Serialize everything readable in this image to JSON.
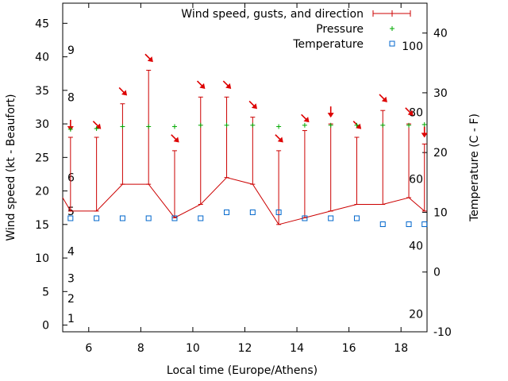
{
  "chart_data": {
    "type": "line",
    "title": "",
    "xlabel": "Local time (Europe/Athens)",
    "ylabel": "Wind speed (kt - Beaufort)",
    "y2label": "Temperature (C - F)",
    "xlim": [
      5,
      19
    ],
    "ylim": [
      -1,
      48
    ],
    "y2lim": [
      -10,
      45
    ],
    "x_ticks": [
      6,
      8,
      10,
      12,
      14,
      16,
      18
    ],
    "y_ticks": [
      0,
      5,
      10,
      15,
      20,
      25,
      30,
      35,
      40,
      45
    ],
    "y2_ticks": [
      -10,
      0,
      10,
      20,
      30,
      40
    ],
    "beaufort_labels": [
      {
        "label": "1",
        "kt": 1
      },
      {
        "label": "2",
        "kt": 4
      },
      {
        "label": "3",
        "kt": 7
      },
      {
        "label": "4",
        "kt": 11
      },
      {
        "label": "5",
        "kt": 17
      },
      {
        "label": "6",
        "kt": 22
      },
      {
        "label": "8",
        "kt": 34
      },
      {
        "label": "9",
        "kt": 41
      }
    ],
    "fahrenheit_labels": [
      {
        "label": "20",
        "y2": -7
      },
      {
        "label": "40",
        "y2": 4.4
      },
      {
        "label": "60",
        "y2": 15.6
      },
      {
        "label": "80",
        "y2": 26.7
      },
      {
        "label": "100",
        "y2": 37.8
      }
    ],
    "legend": [
      {
        "label": "Wind speed, gusts, and direction",
        "color": "#cc0000",
        "marker": "errorbar"
      },
      {
        "label": "Pressure",
        "color": "#00aa00",
        "marker": "plus"
      },
      {
        "label": "Temperature",
        "color": "#0066cc",
        "marker": "square"
      }
    ],
    "legend_position": "top-right",
    "series": [
      {
        "name": "Wind speed",
        "color": "#cc0000",
        "x": [
          5.3,
          6.3,
          7.3,
          8.3,
          9.3,
          10.3,
          11.3,
          12.3,
          13.3,
          14.3,
          15.3,
          16.3,
          17.3,
          18.3,
          18.9
        ],
        "values": [
          17,
          17,
          21,
          21,
          16,
          18,
          22,
          21,
          15,
          16,
          17,
          18,
          18,
          19,
          17
        ],
        "gusts": [
          28,
          28,
          33,
          38,
          26,
          34,
          34,
          31,
          26,
          29,
          30,
          28,
          32,
          30,
          27
        ],
        "direction_deg": [
          0,
          315,
          315,
          315,
          315,
          315,
          315,
          315,
          315,
          315,
          0,
          315,
          315,
          315,
          0
        ],
        "entry": {
          "x": 5,
          "y": 19
        }
      },
      {
        "name": "Pressure",
        "color": "#00aa00",
        "x": [
          5.3,
          6.3,
          7.3,
          8.3,
          9.3,
          10.3,
          11.3,
          12.3,
          13.3,
          14.3,
          15.3,
          16.3,
          17.3,
          18.3,
          18.9
        ],
        "values": [
          29.2,
          29.3,
          29.6,
          29.6,
          29.6,
          29.8,
          29.8,
          29.8,
          29.6,
          29.8,
          29.8,
          29.8,
          29.8,
          29.8,
          29.9
        ]
      },
      {
        "name": "Temperature",
        "color": "#0066cc",
        "axis": "y2",
        "x": [
          5.3,
          6.3,
          7.3,
          8.3,
          9.3,
          10.3,
          11.3,
          12.3,
          13.3,
          14.3,
          15.3,
          16.3,
          17.3,
          18.3,
          18.9
        ],
        "values": [
          9,
          9,
          9,
          9,
          9,
          9,
          10,
          10,
          10,
          9,
          9,
          9,
          8,
          8,
          8
        ]
      }
    ]
  }
}
